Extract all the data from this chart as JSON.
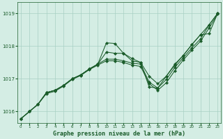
{
  "title": "Graphe pression niveau de la mer (hPa)",
  "bg_color": "#d4ede4",
  "grid_color": "#a8d0c4",
  "line_color": "#1a5c2a",
  "xlim_min": -0.4,
  "xlim_max": 23.4,
  "ylim_min": 1015.65,
  "ylim_max": 1019.35,
  "yticks": [
    1016,
    1017,
    1018,
    1019
  ],
  "xtick_labels": [
    "0",
    "1",
    "2",
    "3",
    "4",
    "5",
    "6",
    "7",
    "8",
    "9",
    "10",
    "11",
    "12",
    "13",
    "14",
    "15",
    "16",
    "17",
    "18",
    "19",
    "20",
    "21",
    "22",
    "23"
  ],
  "line_A": [
    1015.78,
    1016.0,
    1016.22,
    1016.58,
    1016.65,
    1016.8,
    1017.0,
    1017.12,
    1017.3,
    1017.45,
    1018.1,
    1018.08,
    1017.78,
    1017.55,
    1017.5,
    1016.75,
    1016.72,
    1017.08,
    1017.45,
    1017.72,
    1018.05,
    1018.35,
    1018.38,
    1019.0
  ],
  "line_B": [
    1015.78,
    1016.0,
    1016.22,
    1016.58,
    1016.65,
    1016.8,
    1017.0,
    1017.12,
    1017.3,
    1017.45,
    1017.82,
    1017.78,
    1017.78,
    1017.62,
    1017.5,
    1017.08,
    1016.85,
    1017.08,
    1017.42,
    1017.72,
    1018.05,
    1018.35,
    1018.65,
    1019.0
  ],
  "line_C": [
    1015.78,
    1016.0,
    1016.22,
    1016.58,
    1016.65,
    1016.8,
    1017.0,
    1017.12,
    1017.3,
    1017.45,
    1017.6,
    1017.6,
    1017.55,
    1017.48,
    1017.45,
    1016.9,
    1016.72,
    1016.98,
    1017.35,
    1017.65,
    1017.95,
    1018.22,
    1018.65,
    1019.0
  ],
  "line_D": [
    1015.78,
    1016.0,
    1016.22,
    1016.55,
    1016.62,
    1016.78,
    1016.98,
    1017.1,
    1017.28,
    1017.42,
    1017.55,
    1017.55,
    1017.5,
    1017.42,
    1017.38,
    1016.85,
    1016.65,
    1016.88,
    1017.25,
    1017.58,
    1017.88,
    1018.15,
    1018.55,
    1018.98
  ]
}
